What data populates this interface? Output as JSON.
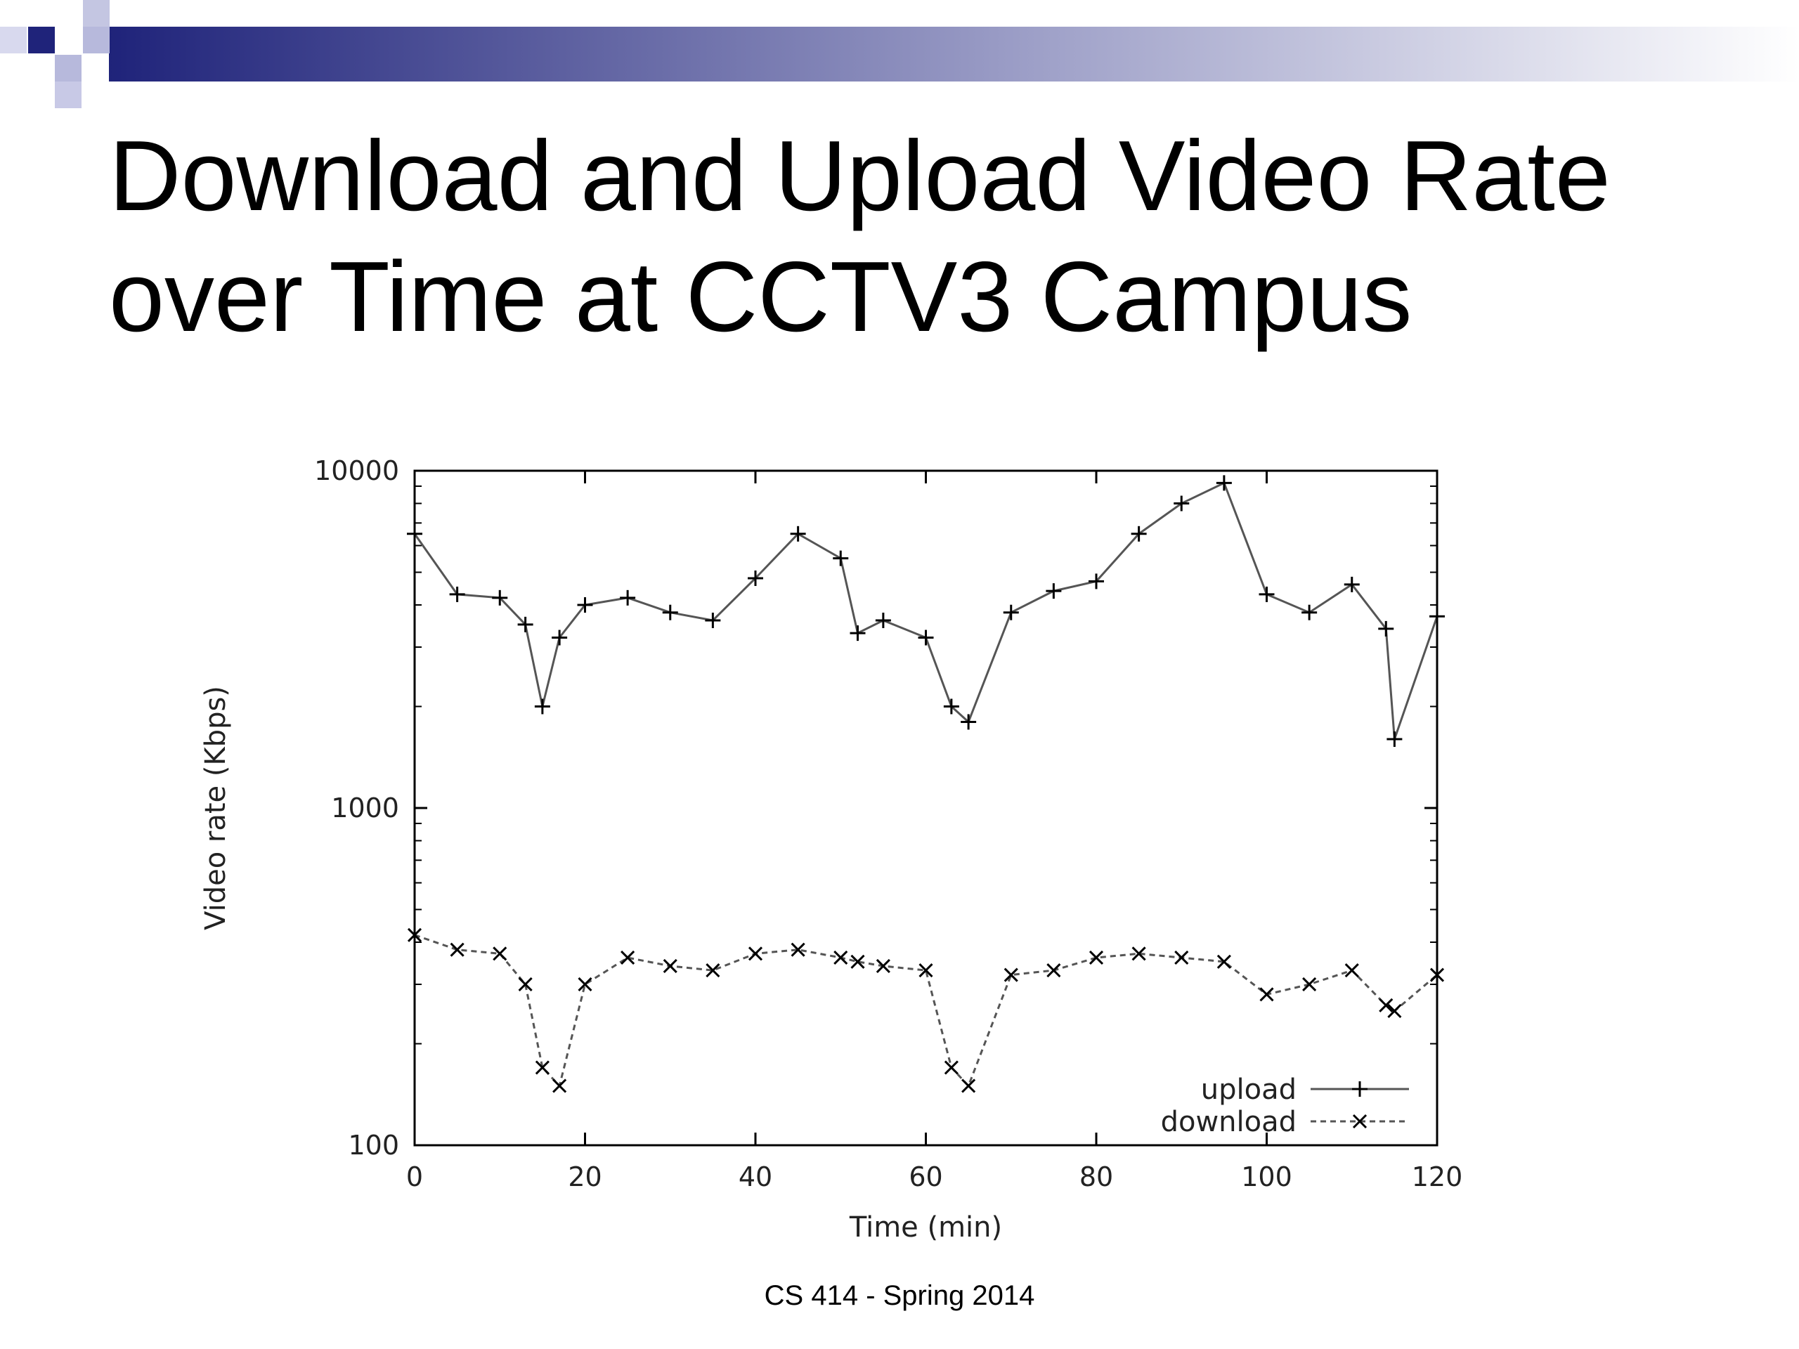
{
  "slide": {
    "title_line1": "Download and Upload Video Rate",
    "title_line2": "over Time at CCTV3 Campus",
    "footer": "CS 414 - Spring 2014",
    "colors": {
      "decor_navy": "#1f237a",
      "decor_light": "#b7b9dc"
    }
  },
  "chart_data": {
    "type": "line",
    "title": "",
    "xlabel": "Time (min)",
    "ylabel": "Video rate (Kbps)",
    "xlim": [
      0,
      120
    ],
    "ylim": [
      100,
      10000
    ],
    "yscale": "log",
    "xticks": [
      0,
      20,
      40,
      60,
      80,
      100,
      120
    ],
    "yticks": [
      100,
      1000,
      10000
    ],
    "xtick_labels": [
      "0",
      "20",
      "40",
      "60",
      "80",
      "100",
      "120"
    ],
    "ytick_labels": [
      "100",
      "1000",
      "10000"
    ],
    "grid": false,
    "legend_position": "bottom-right",
    "x": [
      0,
      5,
      10,
      13,
      15,
      17,
      20,
      25,
      30,
      35,
      40,
      45,
      50,
      52,
      55,
      60,
      63,
      65,
      70,
      75,
      80,
      85,
      90,
      95,
      100,
      105,
      110,
      114,
      115,
      120
    ],
    "series": [
      {
        "name": "upload",
        "marker": "+",
        "style": "solid",
        "values": [
          6500,
          4300,
          4200,
          3500,
          2000,
          3200,
          4000,
          4200,
          3800,
          3600,
          4800,
          6500,
          5500,
          3300,
          3600,
          3200,
          2000,
          1800,
          3800,
          4400,
          4700,
          6500,
          8000,
          9200,
          4300,
          3800,
          4600,
          3400,
          1600,
          3700
        ]
      },
      {
        "name": "download",
        "marker": "x",
        "style": "dashed",
        "values": [
          420,
          380,
          370,
          300,
          170,
          150,
          300,
          360,
          340,
          330,
          370,
          380,
          360,
          350,
          340,
          330,
          170,
          150,
          320,
          330,
          360,
          370,
          360,
          350,
          280,
          300,
          330,
          260,
          250,
          320
        ]
      }
    ]
  }
}
